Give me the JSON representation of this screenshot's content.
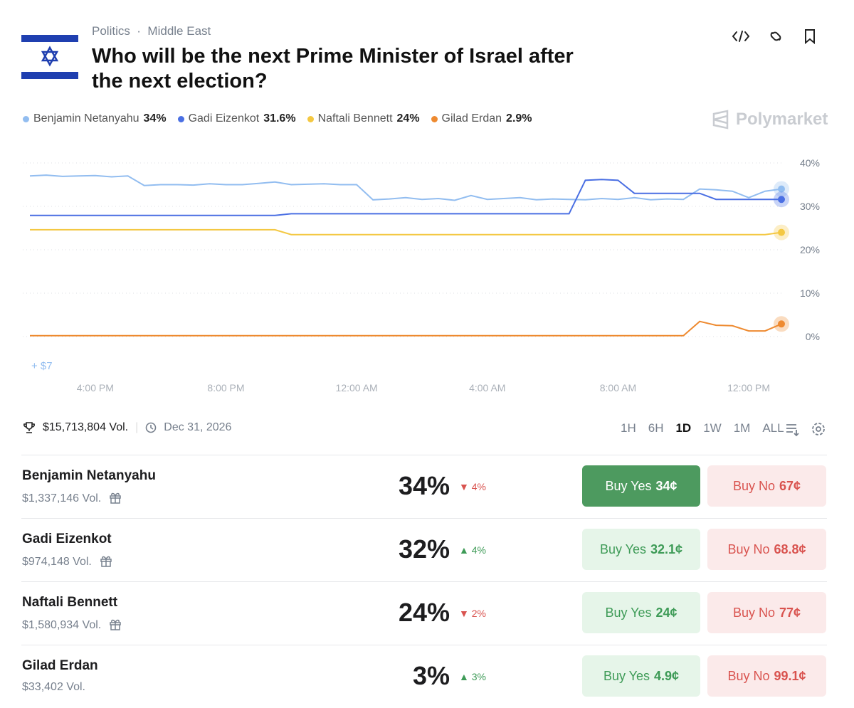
{
  "header": {
    "category": "Politics",
    "subcategory": "Middle East",
    "title": "Who will be the next Prime Minister of Israel after the next election?",
    "brand": "Polymarket"
  },
  "chart_data": {
    "type": "line",
    "categories": [
      null,
      null,
      null,
      null,
      "4:00 PM",
      null,
      null,
      null,
      null,
      null,
      null,
      null,
      "8:00 PM",
      null,
      null,
      null,
      null,
      null,
      null,
      null,
      "12:00 AM",
      null,
      null,
      null,
      null,
      null,
      null,
      null,
      "4:00 AM",
      null,
      null,
      null,
      null,
      null,
      null,
      null,
      "8:00 AM",
      null,
      null,
      null,
      null,
      null,
      null,
      null,
      "12:00 PM",
      null,
      null
    ],
    "series": [
      {
        "name": "Benjamin Netanyahu",
        "legend_value": "34%",
        "color": "#92bdf0",
        "values": [
          37,
          37.2,
          36.9,
          37,
          37.1,
          36.8,
          37,
          34.8,
          35,
          35,
          34.9,
          35.2,
          35,
          35,
          35.3,
          35.6,
          35,
          35.1,
          35.2,
          35,
          35,
          31.5,
          31.7,
          32,
          31.6,
          31.8,
          31.4,
          32.5,
          31.6,
          31.8,
          32,
          31.5,
          31.7,
          31.6,
          31.5,
          31.8,
          31.6,
          32,
          31.5,
          31.7,
          31.6,
          34,
          33.8,
          33.5,
          32,
          33.5,
          34
        ]
      },
      {
        "name": "Gadi Eizenkot",
        "legend_value": "31.6%",
        "color": "#4a6fe3",
        "values": [
          27.9,
          27.9,
          27.9,
          27.9,
          27.9,
          27.9,
          27.9,
          27.9,
          27.9,
          27.9,
          27.9,
          27.9,
          27.9,
          27.9,
          27.9,
          27.9,
          28.3,
          28.3,
          28.3,
          28.3,
          28.3,
          28.3,
          28.3,
          28.3,
          28.3,
          28.3,
          28.3,
          28.3,
          28.3,
          28.3,
          28.3,
          28.3,
          28.3,
          28.3,
          36,
          36.2,
          36,
          33,
          33,
          33,
          33,
          33,
          31.6,
          31.6,
          31.6,
          31.6,
          31.6
        ]
      },
      {
        "name": "Naftali Bennett",
        "legend_value": "24%",
        "color": "#f4c842",
        "values": [
          24.6,
          24.6,
          24.6,
          24.6,
          24.6,
          24.6,
          24.6,
          24.6,
          24.6,
          24.6,
          24.6,
          24.6,
          24.6,
          24.6,
          24.6,
          24.6,
          23.5,
          23.5,
          23.5,
          23.5,
          23.5,
          23.5,
          23.5,
          23.5,
          23.5,
          23.5,
          23.5,
          23.5,
          23.5,
          23.5,
          23.5,
          23.5,
          23.5,
          23.5,
          23.5,
          23.5,
          23.5,
          23.5,
          23.5,
          23.5,
          23.5,
          23.5,
          23.5,
          23.5,
          23.5,
          23.5,
          24
        ]
      },
      {
        "name": "Gilad Erdan",
        "legend_value": "2.9%",
        "color": "#ee8a30",
        "values": [
          0.2,
          0.2,
          0.2,
          0.2,
          0.2,
          0.2,
          0.2,
          0.2,
          0.2,
          0.2,
          0.2,
          0.2,
          0.2,
          0.2,
          0.2,
          0.2,
          0.2,
          0.2,
          0.2,
          0.2,
          0.2,
          0.2,
          0.2,
          0.2,
          0.2,
          0.2,
          0.2,
          0.2,
          0.2,
          0.2,
          0.2,
          0.2,
          0.2,
          0.2,
          0.2,
          0.2,
          0.2,
          0.2,
          0.2,
          0.2,
          0.2,
          3.5,
          2.6,
          2.5,
          1.3,
          1.3,
          2.9
        ]
      }
    ],
    "ylim": [
      0,
      40
    ],
    "yticks": [
      {
        "value": 0,
        "label": "0%"
      },
      {
        "value": 10,
        "label": "10%"
      },
      {
        "value": 20,
        "label": "20%"
      },
      {
        "value": 30,
        "label": "30%"
      },
      {
        "value": 40,
        "label": "40%"
      }
    ],
    "grid": true,
    "annotation": "+ $7"
  },
  "stats": {
    "volume": "$15,713,804 Vol.",
    "end_date": "Dec 31, 2026"
  },
  "timeframes": [
    "1H",
    "6H",
    "1D",
    "1W",
    "1M",
    "ALL"
  ],
  "active_timeframe": 2,
  "outcomes": [
    {
      "name": "Benjamin Netanyahu",
      "volume": "$1,337,146 Vol.",
      "chance": "34%",
      "change": "4%",
      "direction": "down",
      "buy_yes": "Buy Yes",
      "yes_price": "34¢",
      "buy_no": "Buy No",
      "no_price": "67¢",
      "highlighted": true,
      "gift": true
    },
    {
      "name": "Gadi Eizenkot",
      "volume": "$974,148 Vol.",
      "chance": "32%",
      "change": "4%",
      "direction": "up",
      "buy_yes": "Buy Yes",
      "yes_price": "32.1¢",
      "buy_no": "Buy No",
      "no_price": "68.8¢",
      "highlighted": false,
      "gift": true
    },
    {
      "name": "Naftali Bennett",
      "volume": "$1,580,934 Vol.",
      "chance": "24%",
      "change": "2%",
      "direction": "down",
      "buy_yes": "Buy Yes",
      "yes_price": "24¢",
      "buy_no": "Buy No",
      "no_price": "77¢",
      "highlighted": false,
      "gift": true
    },
    {
      "name": "Gilad Erdan",
      "volume": "$33,402 Vol.",
      "chance": "3%",
      "change": "3%",
      "direction": "up",
      "buy_yes": "Buy Yes",
      "yes_price": "4.9¢",
      "buy_no": "Buy No",
      "no_price": "99.1¢",
      "highlighted": false,
      "gift": false
    }
  ]
}
